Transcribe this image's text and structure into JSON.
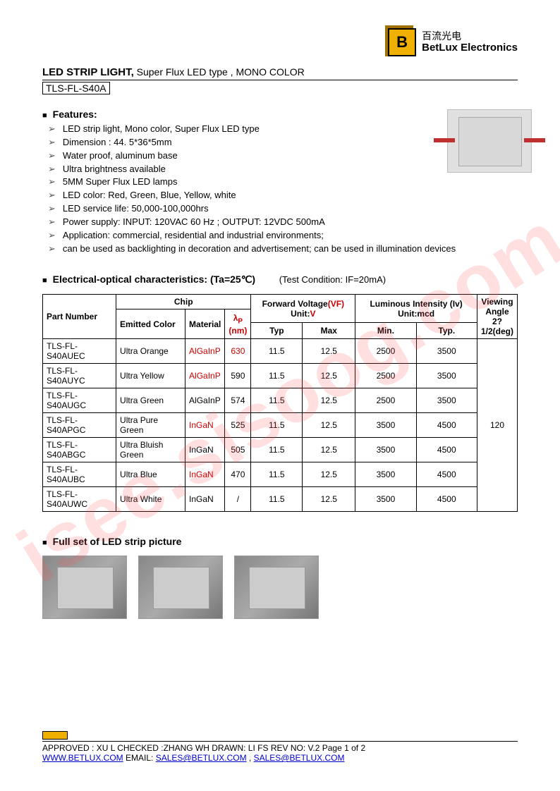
{
  "company": {
    "cn": "百流光电",
    "en": "BetLux Electronics",
    "logo_letter": "B"
  },
  "title": {
    "bold": "LED STRIP LIGHT,",
    "rest": " Super Flux LED type , MONO COLOR",
    "part": "TLS-FL-S40A"
  },
  "features_head": "Features:",
  "features": [
    "LED strip light, Mono color, Super Flux LED type",
    "Dimension : 44. 5*36*5mm",
    "Water proof, aluminum base",
    "Ultra brightness available",
    "5MM Super Flux LED lamps",
    "LED color: Red, Green, Blue, Yellow, white",
    "LED service life: 50,000-100,000hrs",
    "Power supply: INPUT: 120VAC  60  Hz ; OUTPUT: 12VDC   500mA",
    "Application: commercial, residential and industrial environments;",
    "can be used as backlighting in decoration and advertisement; can be used in illumination devices"
  ],
  "elec_head": "Electrical-optical characteristics: (Ta=25℃)",
  "test_cond": "(Test Condition: IF=20mA)",
  "table": {
    "headers": {
      "part": "Part Number",
      "chip": "Chip",
      "emitted": "Emitted Color",
      "material": "Material",
      "lambda": "λP\n(nm)",
      "fv": "Forward Voltage(VF) Unit:V",
      "li": "Luminous Intensity (Iv) Unit:mcd",
      "va": "Viewing Angle 2?1/2(deg)",
      "typ": "Typ",
      "max": "Max",
      "min": "Min.",
      "typ2": "Typ."
    },
    "rows": [
      {
        "pn": "TLS-FL-S40AUEC",
        "color": "Ultra Orange",
        "mat": "AlGaInP",
        "mat_red": true,
        "lam": "630",
        "lam_red": true,
        "vt": "11.5",
        "vm": "12.5",
        "imin": "2500",
        "ityp": "3500"
      },
      {
        "pn": "TLS-FL-S40AUYC",
        "color": "Ultra Yellow",
        "mat": "AlGaInP",
        "mat_red": true,
        "lam": "590",
        "vt": "11.5",
        "vm": "12.5",
        "imin": "2500",
        "ityp": "3500"
      },
      {
        "pn": "TLS-FL-S40AUGC",
        "color": "Ultra Green",
        "mat": "AlGaInP",
        "lam": "574",
        "vt": "11.5",
        "vm": "12.5",
        "imin": "2500",
        "ityp": "3500"
      },
      {
        "pn": "TLS-FL-S40APGC",
        "color": "Ultra Pure Green",
        "mat": "InGaN",
        "mat_red": true,
        "lam": "525",
        "vt": "11.5",
        "vm": "12.5",
        "imin": "3500",
        "ityp": "4500"
      },
      {
        "pn": "TLS-FL-S40ABGC",
        "color": "Ultra Bluish Green",
        "mat": "InGaN",
        "lam": "505",
        "vt": "11.5",
        "vm": "12.5",
        "imin": "3500",
        "ityp": "4500"
      },
      {
        "pn": "TLS-FL-S40AUBC",
        "color": "Ultra Blue",
        "mat": "InGaN",
        "mat_red": true,
        "lam": "470",
        "vt": "11.5",
        "vm": "12.5",
        "imin": "3500",
        "ityp": "4500"
      },
      {
        "pn": "TLS-FL-S40AUWC",
        "color": "Ultra White",
        "mat": "InGaN",
        "lam": "/",
        "vt": "11.5",
        "vm": "12.5",
        "imin": "3500",
        "ityp": "4500"
      }
    ],
    "viewing_angle": "120"
  },
  "pic_head": "Full set of LED strip picture",
  "footer": {
    "approved": "APPROVED : XU L    CHECKED  :ZHANG WH    DRAWN:  LI  FS        REV  NO:  V.2       Page 1 of 2",
    "web": "WWW.BETLUX.COM",
    "email_label": "       EMAIL:  ",
    "email1": "SALES@BETLUX.COM",
    "sep": " , ",
    "email2": "SALES@BETLUX.COM"
  },
  "watermark": "isee.sisoog.com",
  "colors": {
    "accent_red": "#cc0000",
    "link_blue": "#0000cc",
    "logo_yellow": "#f0b000"
  }
}
